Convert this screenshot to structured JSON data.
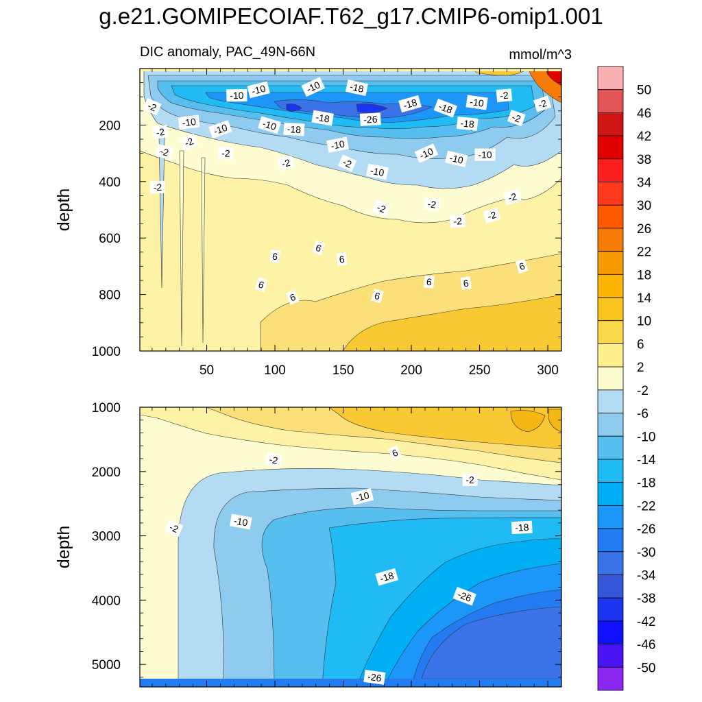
{
  "chart_data": [
    {
      "type": "heatmap",
      "panel": "upper",
      "title": "g.e21.GOMIPECOIAF.T62_g17.CMIP6-omip1.001",
      "subtitle_left": "DIC anomaly, PAC_49N-66N",
      "subtitle_right": "mmol/m^3",
      "xlabel": "",
      "ylabel": "depth",
      "xlim": [
        1,
        310
      ],
      "ylim": [
        0,
        1000
      ],
      "y_inverted": true,
      "x_ticks": [
        50,
        100,
        150,
        200,
        250,
        300
      ],
      "y_ticks": [
        200,
        400,
        600,
        800,
        1000
      ],
      "contour_labels": [
        {
          "text": "-10",
          "x": 128,
          "y": 65
        },
        {
          "text": "-18",
          "x": 160,
          "y": 68
        },
        {
          "text": "-10",
          "x": 72,
          "y": 95
        },
        {
          "text": "-10",
          "x": 88,
          "y": 75
        },
        {
          "text": "-2",
          "x": 10,
          "y": 135
        },
        {
          "text": "-18",
          "x": 135,
          "y": 175
        },
        {
          "text": "-26",
          "x": 170,
          "y": 180
        },
        {
          "text": "-18",
          "x": 199,
          "y": 125
        },
        {
          "text": "-18",
          "x": 225,
          "y": 140
        },
        {
          "text": "-10",
          "x": 248,
          "y": 120
        },
        {
          "text": "-2",
          "x": 268,
          "y": 95
        },
        {
          "text": "-2",
          "x": 296,
          "y": 125
        },
        {
          "text": "-2",
          "x": 277,
          "y": 175
        },
        {
          "text": "-18",
          "x": 241,
          "y": 195
        },
        {
          "text": "-10",
          "x": 37,
          "y": 190
        },
        {
          "text": "-10",
          "x": 60,
          "y": 215
        },
        {
          "text": "-10",
          "x": 96,
          "y": 200
        },
        {
          "text": "-18",
          "x": 114,
          "y": 215
        },
        {
          "text": "-2",
          "x": 16,
          "y": 225
        },
        {
          "text": "-2",
          "x": 37,
          "y": 260
        },
        {
          "text": "-2",
          "x": 19,
          "y": 295
        },
        {
          "text": "-2",
          "x": 64,
          "y": 300
        },
        {
          "text": "-10",
          "x": 146,
          "y": 270
        },
        {
          "text": "-10",
          "x": 211,
          "y": 300
        },
        {
          "text": "-10",
          "x": 233,
          "y": 320
        },
        {
          "text": "-10",
          "x": 254,
          "y": 305
        },
        {
          "text": "-2",
          "x": 108,
          "y": 335
        },
        {
          "text": "-2",
          "x": 153,
          "y": 335
        },
        {
          "text": "-10",
          "x": 175,
          "y": 365
        },
        {
          "text": "-2",
          "x": 14,
          "y": 420
        },
        {
          "text": "-2",
          "x": 274,
          "y": 455
        },
        {
          "text": "-2",
          "x": 178,
          "y": 495
        },
        {
          "text": "-2",
          "x": 215,
          "y": 480
        },
        {
          "text": "-2",
          "x": 234,
          "y": 540
        },
        {
          "text": "-2",
          "x": 259,
          "y": 520
        },
        {
          "text": "6",
          "x": 132,
          "y": 635
        },
        {
          "text": "6",
          "x": 100,
          "y": 665
        },
        {
          "text": "6",
          "x": 149,
          "y": 675
        },
        {
          "text": "6",
          "x": 281,
          "y": 700
        },
        {
          "text": "6",
          "x": 90,
          "y": 765
        },
        {
          "text": "6",
          "x": 213,
          "y": 755
        },
        {
          "text": "6",
          "x": 240,
          "y": 760
        },
        {
          "text": "6",
          "x": 113,
          "y": 810
        },
        {
          "text": "6",
          "x": 175,
          "y": 805
        }
      ]
    },
    {
      "type": "heatmap",
      "panel": "lower",
      "xlabel": "",
      "ylabel": "depth",
      "xlim": [
        1,
        310
      ],
      "ylim": [
        1000,
        5350
      ],
      "y_inverted": true,
      "y_ticks": [
        1000,
        2000,
        3000,
        4000,
        5000
      ],
      "contour_labels": [
        {
          "text": "6",
          "x": 188,
          "y": 1710
        },
        {
          "text": "-2",
          "x": 99,
          "y": 1820
        },
        {
          "text": "-2",
          "x": 243,
          "y": 2130
        },
        {
          "text": "-10",
          "x": 164,
          "y": 2390
        },
        {
          "text": "-2",
          "x": 26,
          "y": 2880
        },
        {
          "text": "-10",
          "x": 75,
          "y": 2780
        },
        {
          "text": "-18",
          "x": 281,
          "y": 2870
        },
        {
          "text": "-18",
          "x": 182,
          "y": 3640
        },
        {
          "text": "-26",
          "x": 239,
          "y": 3940
        },
        {
          "text": "-26",
          "x": 173,
          "y": 5200
        }
      ]
    }
  ],
  "colorbar": {
    "labels": [
      "50",
      "46",
      "42",
      "38",
      "34",
      "30",
      "26",
      "22",
      "18",
      "14",
      "10",
      "6",
      "2",
      "-2",
      "-6",
      "-10",
      "-14",
      "-18",
      "-22",
      "-26",
      "-30",
      "-34",
      "-38",
      "-42",
      "-46",
      "-50"
    ],
    "colors": [
      "#fbb1b1",
      "#e25557",
      "#cf1414",
      "#e00000",
      "#fc1d1d",
      "#ff3a1c",
      "#ff5a00",
      "#f77c07",
      "#f89b03",
      "#fcb405",
      "#f9c41b",
      "#fad94a",
      "#fdef8b",
      "#fefdd1",
      "#b3dbf3",
      "#8ecbef",
      "#57bff0",
      "#20bbf4",
      "#01aff6",
      "#1d96fa",
      "#237bf2",
      "#3a73e8",
      "#3557da",
      "#1b34f0",
      "#1010fc",
      "#4814f6",
      "#8a27f1"
    ]
  },
  "colors": {
    "bg_yellow_light": "#fdf2a6",
    "bg_yellow": "#fbe07a",
    "bg_gold": "#f9c934",
    "bg_amber": "#f6b614",
    "cream": "#fefdd1",
    "blue_pale": "#b3dbf3",
    "blue_light": "#8ecbef",
    "blue_mid": "#57bff0",
    "blue": "#20bbf4",
    "blue_deep": "#1d96fa",
    "blue_dark": "#237bf2",
    "blue_darker": "#3a73e8",
    "blue_core": "#1b34f0"
  }
}
